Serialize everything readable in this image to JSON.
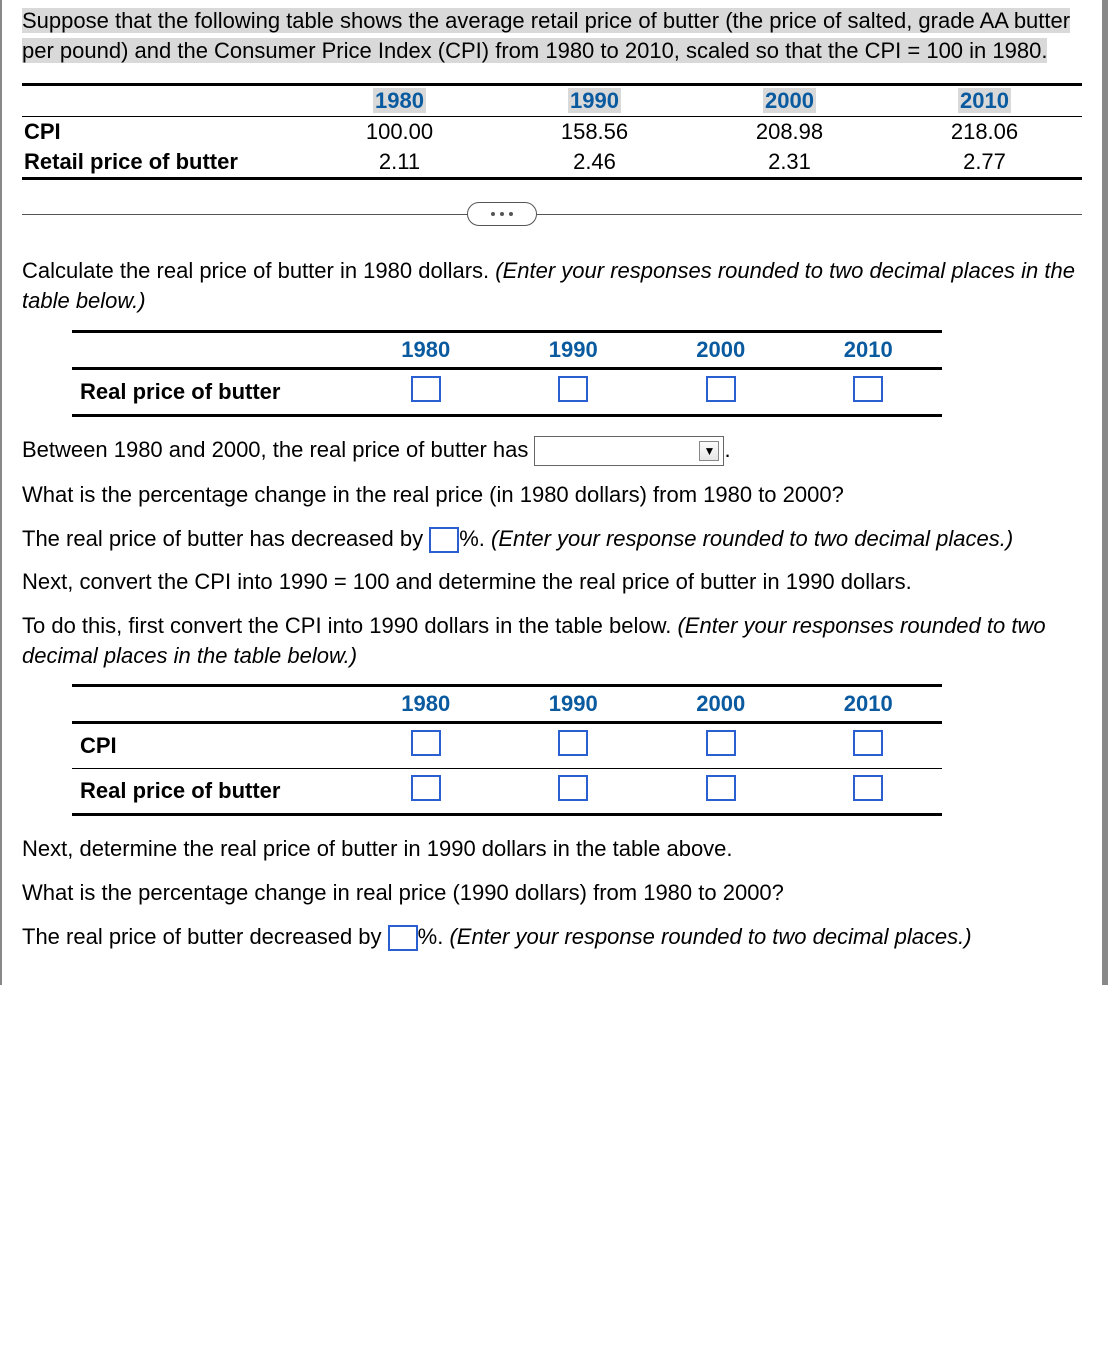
{
  "intro": {
    "seg1": "Suppose that the following table shows the average retail price of butter (the price of salted, grade AA butter per pound) and the Consumer Price Index (CPI) from 1980 to 2010, scaled so that the CPI = 100 in 1980."
  },
  "years": [
    "1980",
    "1990",
    "2000",
    "2010"
  ],
  "table1": {
    "rows": [
      {
        "label": "CPI",
        "vals": [
          "100.00",
          "158.56",
          "208.98",
          "218.06"
        ]
      },
      {
        "label": "Retail price of butter",
        "vals": [
          "2.11",
          "2.46",
          "2.31",
          "2.77"
        ]
      }
    ]
  },
  "q1": {
    "prompt_a": "Calculate the real price of butter in 1980 dollars.  ",
    "prompt_b": "(Enter your responses rounded to two decimal places in the table below.)",
    "row_label": "Real price of butter"
  },
  "q2": {
    "line_a": "Between 1980 and 2000, the real price of butter has ",
    "line_b": "."
  },
  "q3": {
    "line": "What is the percentage change in the real price (in 1980 dollars) from 1980 to 2000?"
  },
  "q4": {
    "a": "The real price of butter has decreased by ",
    "b": "%. ",
    "c": "(Enter your response rounded to two decimal places.)"
  },
  "q5": {
    "line": "Next, convert the CPI into 1990 = 100 and determine the real price of butter in 1990 dollars."
  },
  "q6": {
    "a": "To do this, first convert the CPI into 1990 dollars in the table below. ",
    "b": "(Enter your responses rounded to two decimal places in the table below.)"
  },
  "table3": {
    "rows": [
      {
        "label": "CPI"
      },
      {
        "label": "Real price of butter"
      }
    ]
  },
  "q7": {
    "line": "Next, determine the real price of butter in 1990 dollars in the table above."
  },
  "q8": {
    "line": "What is the percentage change in real price (1990 dollars) from 1980 to 2000?"
  },
  "q9": {
    "a": "The real price of butter decreased by ",
    "b": "%. ",
    "c": "(Enter your response rounded to two decimal places.)"
  },
  "colors": {
    "year_header": "#0a5aa0",
    "highlight_bg": "#d9d9d9",
    "input_border": "#2a5fd1"
  }
}
